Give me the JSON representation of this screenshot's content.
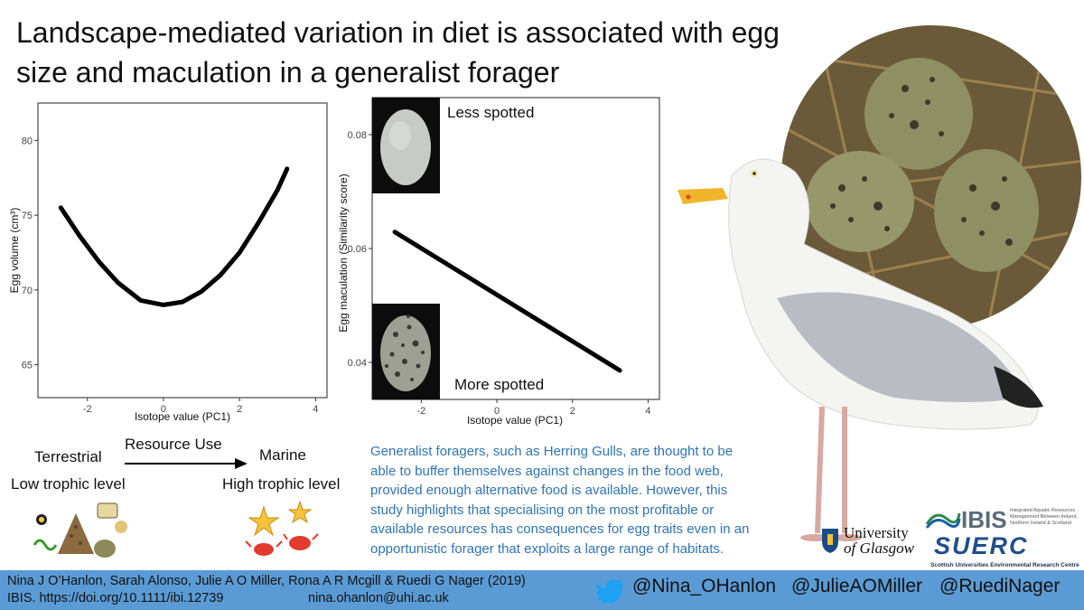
{
  "title": "Landscape-mediated variation in diet is associated with egg size and maculation in a generalist forager",
  "chart_data": [
    {
      "type": "line",
      "xlabel": "Isotope value (PC1)",
      "ylabel": "Egg volume (cm³)",
      "xlim": [
        -3.3,
        4.3
      ],
      "ylim": [
        62.8,
        82.5
      ],
      "x_ticks": [
        "-2",
        "0",
        "2",
        "4"
      ],
      "y_ticks": [
        "65",
        "70",
        "75",
        "80"
      ],
      "grid": false,
      "series": [
        {
          "x": [
            -2.7,
            -2.2,
            -1.7,
            -1.2,
            -0.6,
            0.0,
            0.5,
            1.0,
            1.5,
            2.0,
            2.5,
            3.0,
            3.25
          ],
          "values": [
            75.5,
            73.6,
            71.9,
            70.5,
            69.3,
            69.0,
            69.2,
            69.9,
            71.0,
            72.5,
            74.5,
            76.7,
            78.1
          ]
        }
      ]
    },
    {
      "type": "line",
      "xlabel": "Isotope value (PC1)",
      "ylabel": "Egg maculation  (Similarity score)",
      "xlim": [
        -3.3,
        4.3
      ],
      "ylim": [
        0.0335,
        0.0865
      ],
      "x_ticks": [
        "-2",
        "0",
        "2",
        "4"
      ],
      "y_ticks": [
        "0.04",
        "0.06",
        "0.08"
      ],
      "grid": false,
      "annotations": [
        "Less spotted",
        "More spotted"
      ],
      "series": [
        {
          "x": [
            -2.7,
            3.25
          ],
          "values": [
            0.0629,
            0.0386
          ]
        }
      ]
    }
  ],
  "resource": {
    "heading": "Resource Use",
    "left_top": "Terrestrial",
    "left_bottom": "Low trophic level",
    "right_top": "Marine",
    "right_bottom": "High trophic level"
  },
  "summary": "Generalist foragers, such as Herring Gulls, are thought to be able to buffer themselves against changes in the food web, provided enough alternative food is available. However, this study highlights that specialising on the most profitable or available resources has consequences for egg traits even in an opportunistic forager that exploits a large range of habitats.",
  "logos": {
    "glasgow_1": "University",
    "glasgow_2": "of Glasgow",
    "ibis": "IBIS",
    "ibis_sub": "Integrated Aquatic Resources Management Between Ireland, Northern Ireland & Scotland",
    "suerc": "SUERC",
    "suerc_sub": "Scottish Universities Environmental Research Centre"
  },
  "footer": {
    "authors": "Nina J O’Hanlon, Sarah Alonso, Julie A O Miller, Rona A R Mcgill & Ruedi G Nager (2019)",
    "journal": "IBIS. https://doi.org/10.1111/ibi.12739",
    "email": "nina.ohanlon@uhi.ac.uk",
    "handle1": "@Nina_OHanlon",
    "handle2": "@JulieAOMiller",
    "handle3": "@RuediNager"
  },
  "colors": {
    "footer_bg": "#5b9bd5",
    "summary_text": "#2e75b6",
    "twitter": "#1da1f2"
  },
  "icons": [
    "twitter-icon",
    "gull-photo",
    "nest-eggs-photo",
    "terrestrial-food-icons",
    "marine-food-icons"
  ]
}
